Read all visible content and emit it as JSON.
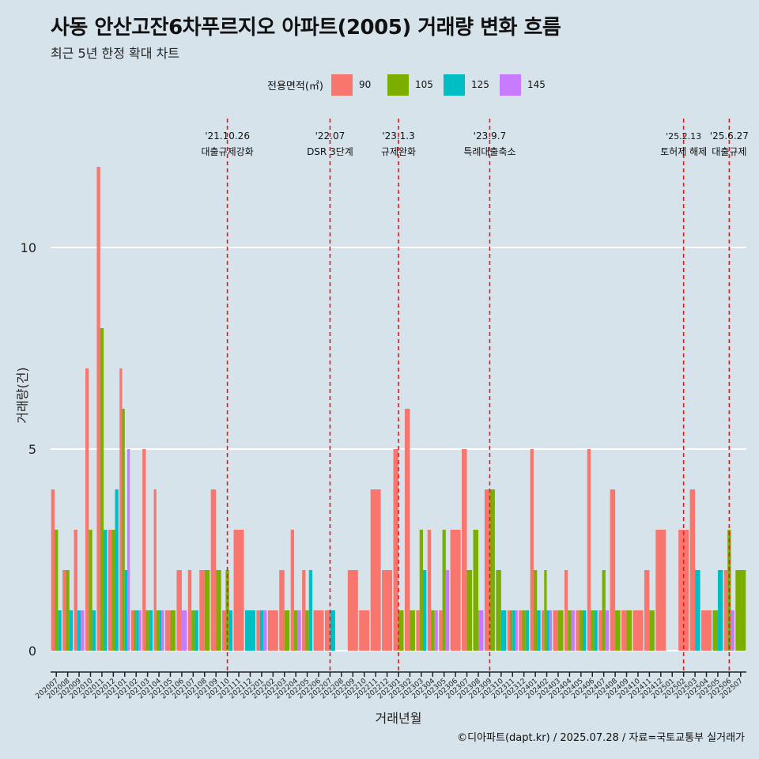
{
  "title": "사동 안산고잔6차푸르지오 아파트(2005) 거래량 변화 흐름",
  "subtitle": "최근 5년 한정 확대 차트",
  "caption": "©디아파트(dapt.kr) / 2025.07.28 / 자료=국토교통부 실거래가",
  "colors": {
    "90": "#f8766d",
    "105": "#7cae00",
    "125": "#00bfc4",
    "145": "#c77cff",
    "vline": "#e31a1c",
    "grid": "#ffffff",
    "background": "#d6e3ea"
  },
  "legend": {
    "title": "전용면적(㎡)",
    "items": [
      {
        "label": "90",
        "color": "#f8766d"
      },
      {
        "label": "105",
        "color": "#7cae00"
      },
      {
        "label": "125",
        "color": "#00bfc4"
      },
      {
        "label": "145",
        "color": "#c77cff"
      }
    ]
  },
  "chart_data": {
    "type": "bar",
    "xlabel": "거래년월",
    "ylabel": "거래량(건)",
    "ylim": [
      0,
      12
    ],
    "yticks": [
      0,
      5,
      10
    ],
    "grid": true,
    "legend_position": "top",
    "categories": [
      "202007",
      "202008",
      "202009",
      "202010",
      "202011",
      "202012",
      "202101",
      "202102",
      "202103",
      "202104",
      "202105",
      "202106",
      "202107",
      "202108",
      "202109",
      "202110",
      "202111",
      "202112",
      "202201",
      "202202",
      "202203",
      "202204",
      "202205",
      "202206",
      "202207",
      "202208",
      "202209",
      "202210",
      "202211",
      "202212",
      "202301",
      "202302",
      "202303",
      "202304",
      "202305",
      "202306",
      "202307",
      "202308",
      "202309",
      "202310",
      "202311",
      "202312",
      "202401",
      "202402",
      "202403",
      "202404",
      "202405",
      "202406",
      "202407",
      "202408",
      "202409",
      "202410",
      "202411",
      "202412",
      "202501",
      "202502",
      "202503",
      "202504",
      "202505",
      "202506",
      "202507"
    ],
    "series": [
      {
        "name": "90",
        "values": [
          4,
          2,
          3,
          7,
          12,
          3,
          7,
          1,
          5,
          4,
          1,
          2,
          2,
          2,
          4,
          1,
          3,
          0,
          1,
          1,
          2,
          3,
          2,
          1,
          1,
          0,
          2,
          1,
          4,
          2,
          5,
          6,
          1,
          3,
          1,
          3,
          5,
          0,
          4,
          0,
          1,
          1,
          5,
          1,
          1,
          2,
          1,
          5,
          1,
          4,
          1,
          1,
          2,
          3,
          0,
          3,
          4,
          1,
          0,
          2,
          0
        ]
      },
      {
        "name": "105",
        "values": [
          3,
          2,
          0,
          3,
          8,
          3,
          6,
          1,
          1,
          1,
          1,
          0,
          1,
          2,
          2,
          2,
          0,
          0,
          0,
          0,
          1,
          1,
          1,
          0,
          0,
          0,
          0,
          0,
          0,
          0,
          1,
          1,
          3,
          1,
          3,
          0,
          2,
          3,
          4,
          2,
          1,
          1,
          2,
          2,
          1,
          1,
          1,
          1,
          2,
          1,
          1,
          0,
          1,
          0,
          0,
          0,
          0,
          0,
          1,
          3,
          2
        ]
      },
      {
        "name": "125",
        "values": [
          1,
          1,
          1,
          1,
          3,
          4,
          2,
          1,
          1,
          1,
          0,
          0,
          1,
          0,
          0,
          1,
          0,
          1,
          1,
          0,
          0,
          0,
          2,
          0,
          1,
          0,
          0,
          0,
          0,
          0,
          0,
          0,
          2,
          0,
          0,
          0,
          0,
          0,
          0,
          1,
          1,
          1,
          1,
          1,
          0,
          0,
          1,
          1,
          0,
          0,
          0,
          0,
          0,
          0,
          0,
          0,
          2,
          0,
          2,
          0,
          0
        ]
      },
      {
        "name": "145",
        "values": [
          0,
          0,
          1,
          0,
          0,
          0,
          5,
          1,
          0,
          1,
          0,
          1,
          0,
          0,
          0,
          0,
          0,
          0,
          1,
          0,
          0,
          1,
          0,
          0,
          0,
          0,
          0,
          0,
          0,
          0,
          0,
          0,
          0,
          1,
          2,
          0,
          0,
          1,
          0,
          0,
          1,
          0,
          0,
          1,
          0,
          1,
          0,
          0,
          1,
          0,
          0,
          0,
          0,
          0,
          0,
          0,
          0,
          0,
          0,
          1,
          0
        ]
      }
    ],
    "events": [
      {
        "date": "'21.10.26",
        "label": "대출규제강화",
        "at": "202110"
      },
      {
        "date": "'22.07",
        "label": "DSR 3단계",
        "at": "202207"
      },
      {
        "date": "'23.1.3",
        "label": "규제완화",
        "at": "202301"
      },
      {
        "date": "'23.9.7",
        "label": "특례대출축소",
        "at": "202309"
      },
      {
        "date": "'25.2.13",
        "label": "토허제 해제",
        "at": "202502"
      },
      {
        "date": "'25.6.27",
        "label": "대출규제",
        "at": "202506"
      }
    ]
  }
}
